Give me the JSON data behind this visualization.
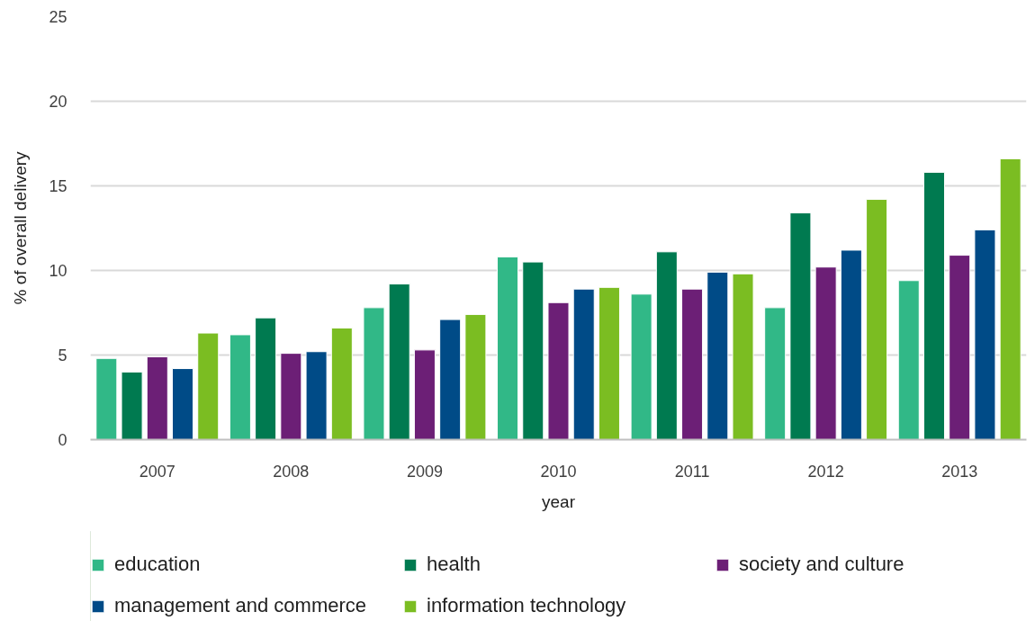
{
  "chart_data": {
    "type": "bar",
    "xlabel": "year",
    "ylabel": "% of overall delivery",
    "categories": [
      "2007",
      "2008",
      "2009",
      "2010",
      "2011",
      "2012",
      "2013"
    ],
    "series": [
      {
        "name": "education",
        "color": "#31b887",
        "values": [
          4.8,
          6.2,
          7.8,
          10.8,
          8.6,
          7.8,
          9.4
        ]
      },
      {
        "name": "health",
        "color": "#007a50",
        "values": [
          4.0,
          7.2,
          9.2,
          10.5,
          11.1,
          13.4,
          15.8
        ]
      },
      {
        "name": "society and culture",
        "color": "#6c1f76",
        "values": [
          4.9,
          5.1,
          5.3,
          8.1,
          8.9,
          10.2,
          10.9
        ]
      },
      {
        "name": "management and commerce",
        "color": "#004b87",
        "values": [
          4.2,
          5.2,
          7.1,
          8.9,
          9.9,
          11.2,
          12.4
        ]
      },
      {
        "name": "information technology",
        "color": "#7bbd22",
        "values": [
          6.3,
          6.6,
          7.4,
          9.0,
          9.8,
          14.2,
          16.6
        ]
      }
    ],
    "ylim": [
      0,
      25
    ],
    "yticks": [
      0,
      5,
      10,
      15,
      20,
      25
    ],
    "grid": "y",
    "legend": "bottom"
  }
}
